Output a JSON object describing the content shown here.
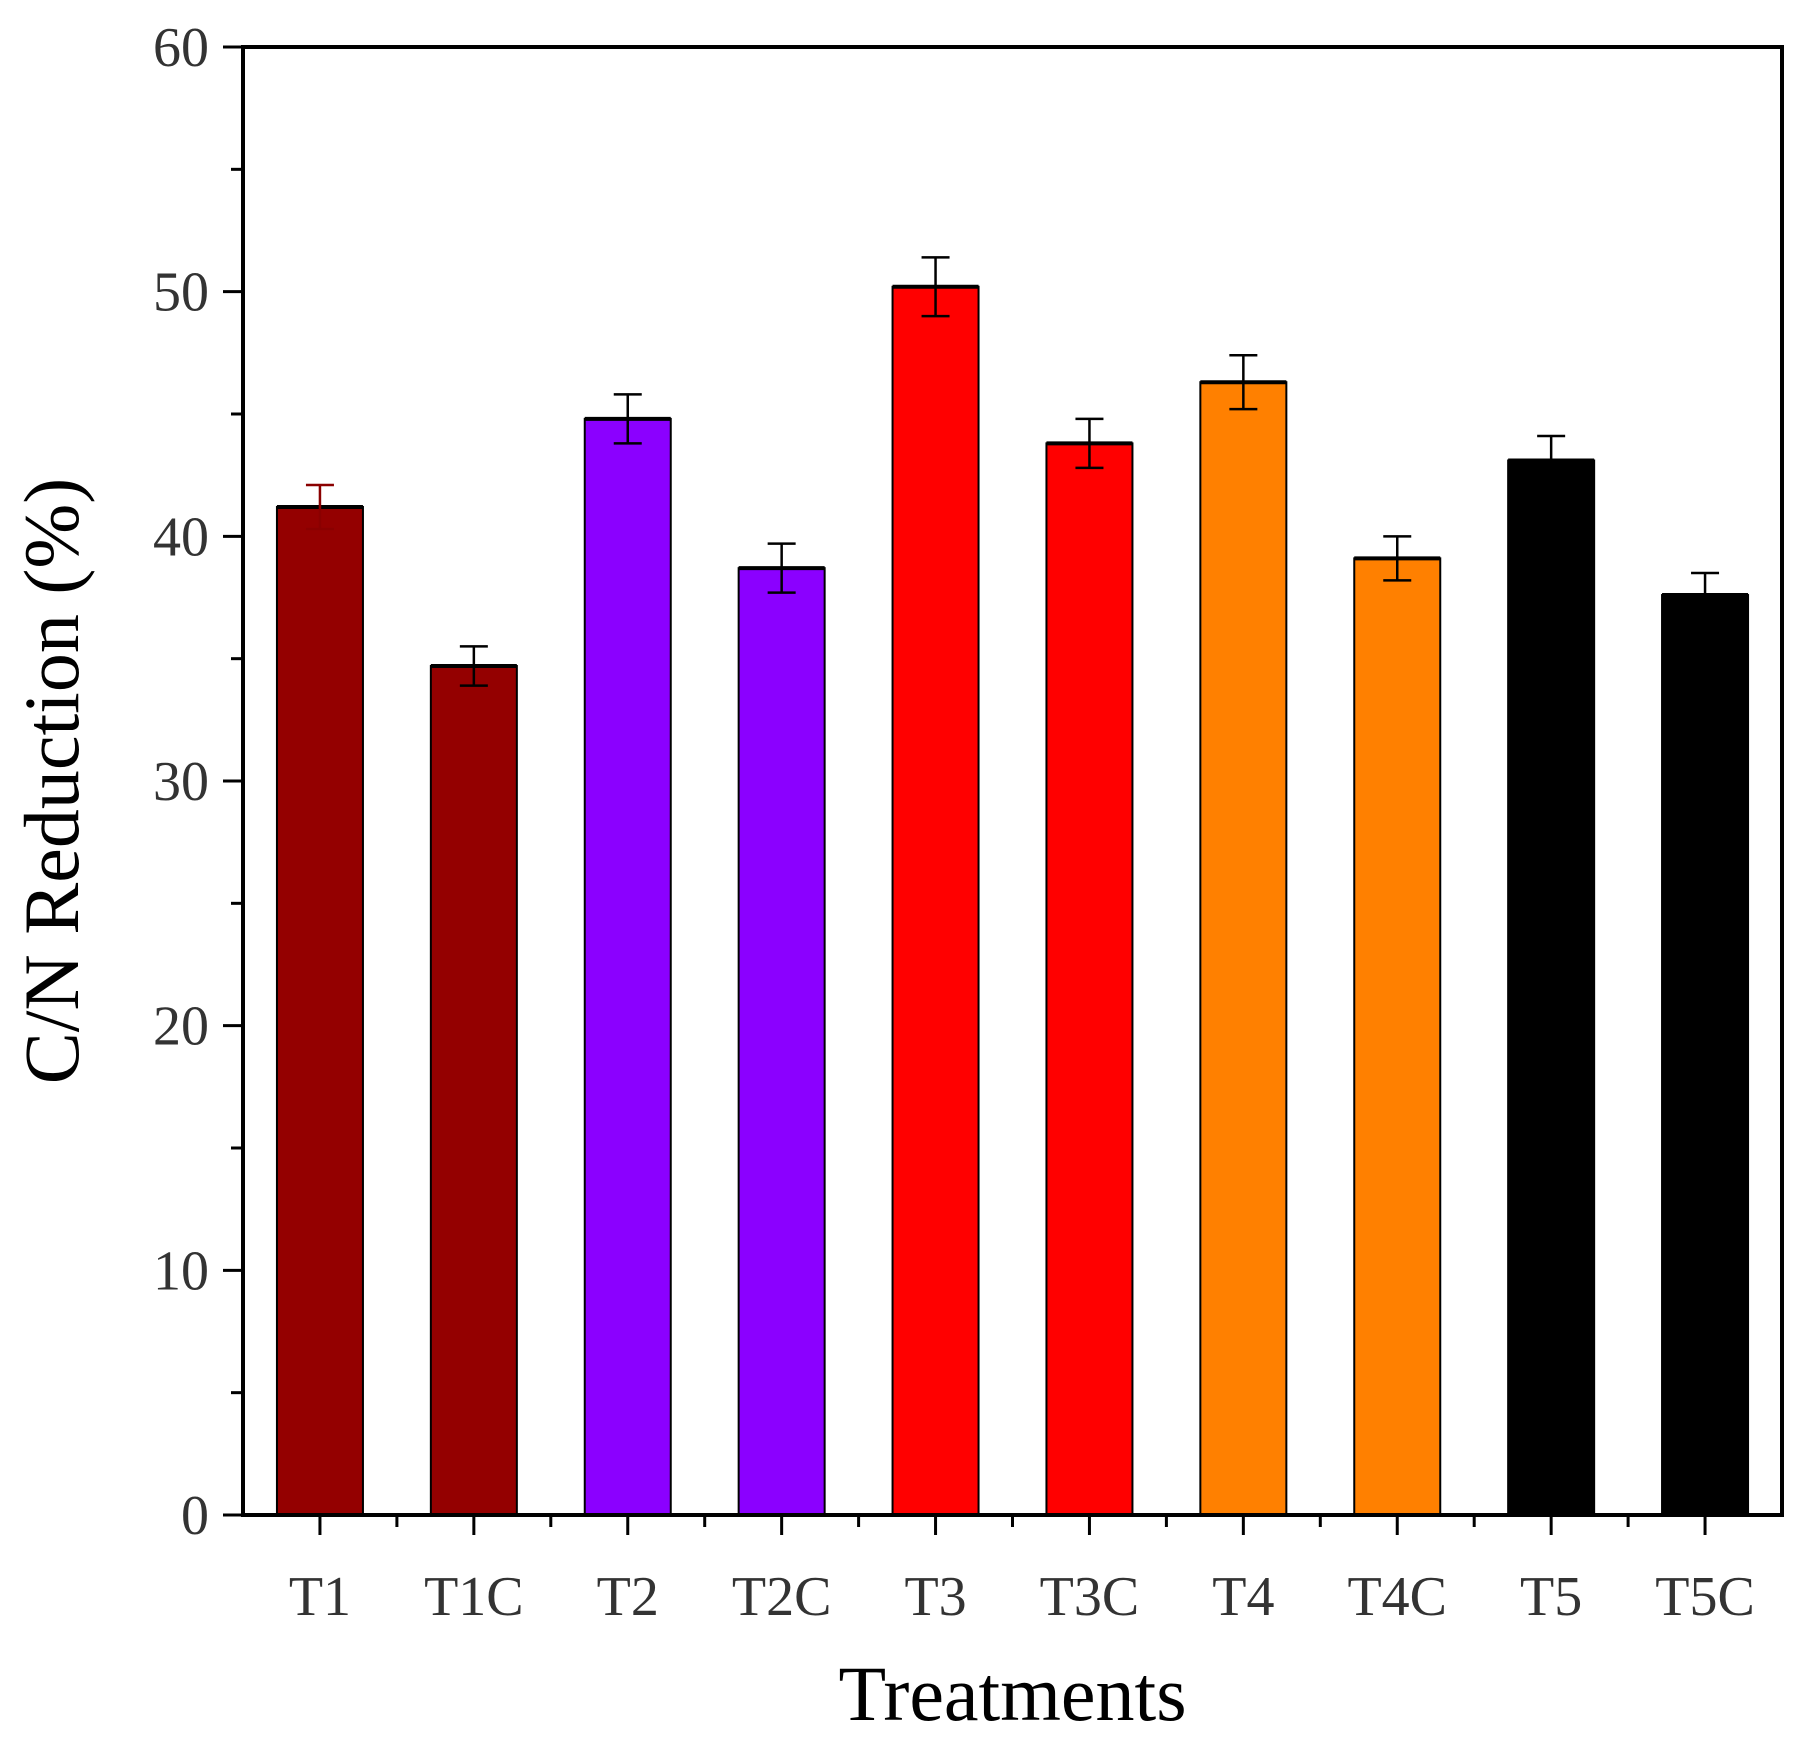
{
  "chart_data": {
    "type": "bar",
    "title": "",
    "xlabel": "Treatments",
    "ylabel": "C/N Reduction (%)",
    "ylim": [
      0,
      60
    ],
    "yticks": [
      0,
      10,
      20,
      30,
      40,
      50,
      60
    ],
    "grid": false,
    "categories": [
      "T1",
      "T1C",
      "T2",
      "T2C",
      "T3",
      "T3C",
      "T4",
      "T4C",
      "T5",
      "T5C"
    ],
    "values": [
      41.2,
      34.7,
      44.8,
      38.7,
      50.2,
      43.8,
      46.3,
      39.1,
      43.1,
      37.6
    ],
    "errors": [
      0.9,
      0.8,
      1.0,
      1.0,
      1.2,
      1.0,
      1.1,
      0.9,
      1.0,
      0.9
    ],
    "colors": [
      "#940000",
      "#940000",
      "#8b00ff",
      "#8b00ff",
      "#ff0000",
      "#ff0000",
      "#ff8000",
      "#ff8000",
      "#000000",
      "#000000"
    ]
  }
}
